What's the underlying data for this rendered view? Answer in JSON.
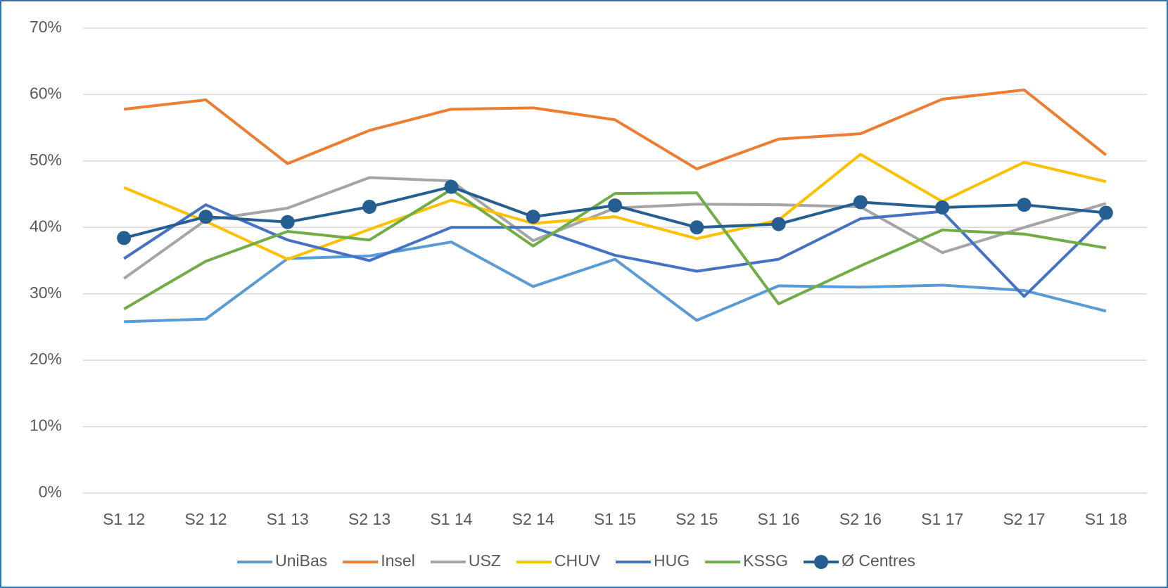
{
  "chart_data": {
    "type": "line",
    "categories": [
      "S1 12",
      "S2 12",
      "S1 13",
      "S2 13",
      "S1 14",
      "S2 14",
      "S1 15",
      "S2 15",
      "S1 16",
      "S2 16",
      "S1 17",
      "S2 17",
      "S1 18"
    ],
    "series": [
      {
        "name": "UniBas",
        "color": "#5b9bd5",
        "values": [
          25.8,
          26.2,
          35.3,
          35.7,
          37.8,
          31.1,
          35.2,
          26.0,
          31.2,
          31.0,
          31.3,
          30.5,
          27.4
        ]
      },
      {
        "name": "Insel",
        "color": "#ed7d31",
        "values": [
          57.8,
          59.2,
          49.6,
          54.6,
          57.8,
          58.0,
          56.2,
          48.8,
          53.3,
          54.1,
          59.3,
          60.7,
          50.9
        ]
      },
      {
        "name": "USZ",
        "color": "#a5a5a5",
        "values": [
          32.3,
          41.1,
          42.9,
          47.5,
          47.0,
          38.0,
          42.9,
          43.5,
          43.4,
          43.1,
          36.2,
          40.0,
          43.6
        ]
      },
      {
        "name": "CHUV",
        "color": "#ffc000",
        "values": [
          46.0,
          40.9,
          35.2,
          39.7,
          44.1,
          40.6,
          41.6,
          38.3,
          41.1,
          51.0,
          43.9,
          49.8,
          46.9
        ]
      },
      {
        "name": "HUG",
        "color": "#4472c4",
        "values": [
          35.3,
          43.4,
          38.1,
          35.0,
          40.0,
          40.0,
          35.8,
          33.4,
          35.2,
          41.3,
          42.4,
          29.6,
          41.7
        ]
      },
      {
        "name": "KSSG",
        "color": "#70ad47",
        "values": [
          27.7,
          34.9,
          39.4,
          38.1,
          45.7,
          37.2,
          45.1,
          45.2,
          28.5,
          34.2,
          39.6,
          39.0,
          36.9
        ]
      },
      {
        "name": "Ø Centres",
        "color": "#255e91",
        "marker": true,
        "values": [
          38.4,
          41.6,
          40.8,
          43.1,
          46.1,
          41.6,
          43.3,
          40.0,
          40.5,
          43.8,
          43.0,
          43.4,
          42.2
        ]
      }
    ],
    "ylim": [
      0,
      70
    ],
    "yticks": [
      {
        "value": 0,
        "label": "0%"
      },
      {
        "value": 10,
        "label": "10%"
      },
      {
        "value": 20,
        "label": "20%"
      },
      {
        "value": 30,
        "label": "30%"
      },
      {
        "value": 40,
        "label": "40%"
      },
      {
        "value": 50,
        "label": "50%"
      },
      {
        "value": 60,
        "label": "60%"
      },
      {
        "value": 70,
        "label": "70%"
      }
    ],
    "grid": true,
    "legend": "bottom"
  }
}
